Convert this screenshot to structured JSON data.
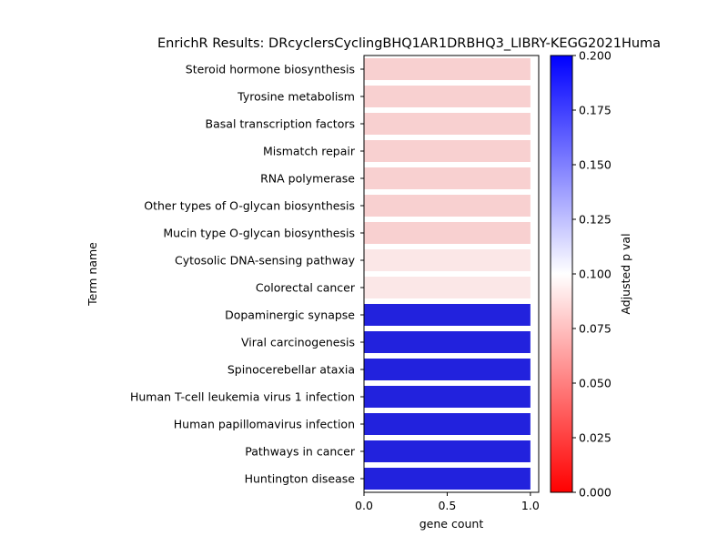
{
  "chart_data": {
    "type": "bar",
    "orientation": "horizontal",
    "title": "EnrichR Results: DRcyclersCyclingBHQ1AR1DRBHQ3_LIBRY-KEGG2021Huma",
    "xlabel": "gene count",
    "ylabel": "Term name",
    "xlim": [
      0,
      1.05
    ],
    "x_ticks": [
      "0.0",
      "0.5",
      "1.0"
    ],
    "grid": false,
    "categories": [
      "Steroid hormone biosynthesis",
      "Tyrosine metabolism",
      "Basal transcription factors",
      "Mismatch repair",
      "RNA polymerase",
      "Other types of O-glycan biosynthesis",
      "Mucin type O-glycan biosynthesis",
      "Cytosolic DNA-sensing pathway",
      "Colorectal cancer",
      "Dopaminergic synapse",
      "Viral carcinogenesis",
      "Spinocerebellar ataxia",
      "Human T-cell leukemia virus 1 infection",
      "Human papillomavirus infection",
      "Pathways in cancer",
      "Huntington disease"
    ],
    "values": [
      1,
      1,
      1,
      1,
      1,
      1,
      1,
      1,
      1,
      1,
      1,
      1,
      1,
      1,
      1,
      1
    ],
    "adjusted_p": [
      0.083,
      0.083,
      0.083,
      0.083,
      0.083,
      0.083,
      0.083,
      0.093,
      0.093,
      0.2,
      0.2,
      0.2,
      0.2,
      0.2,
      0.2,
      0.2
    ],
    "bar_colors": [
      "#f8d0d0",
      "#f8d0d0",
      "#f8d0d0",
      "#f8d0d0",
      "#f8d0d0",
      "#f8d0d0",
      "#f8d0d0",
      "#fbe7e7",
      "#fbe7e7",
      "#2222dd",
      "#2222dd",
      "#2222dd",
      "#2222dd",
      "#2222dd",
      "#2222dd",
      "#2222dd"
    ],
    "colorbar": {
      "label": "Adjusted p val",
      "range": [
        0,
        0.2
      ],
      "ticks": [
        "0.000",
        "0.025",
        "0.050",
        "0.075",
        "0.100",
        "0.125",
        "0.150",
        "0.175",
        "0.200"
      ],
      "colors": [
        "#ff0000",
        "#ffffff",
        "#0000ff"
      ]
    }
  }
}
